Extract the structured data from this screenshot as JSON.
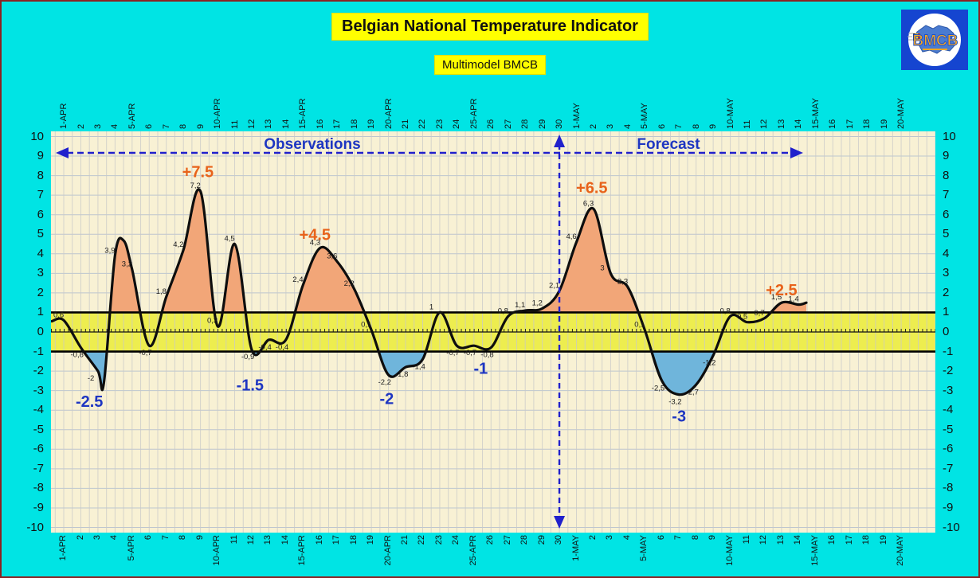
{
  "title": "Belgian National Temperature Indicator",
  "subtitle": "Multimodel BMCB",
  "logo": {
    "text": "BMCB"
  },
  "regions": {
    "observations": "Observations",
    "forecast": "Forecast"
  },
  "colors": {
    "background": "#00E4E4",
    "border": "#8B2121",
    "title_bg": "#FFFF00",
    "plot_bg": "#F8F1D4",
    "band": "#EDED4F",
    "grid_h": "#BDC6CF",
    "grid_v": "#C9C9C9",
    "curve": "#0E0E0E",
    "fill_above": "#F2A678",
    "fill_below": "#6FB5DB",
    "annotation_high": "#E8621A",
    "annotation_low": "#1E36C2",
    "arrow": "#2020CC",
    "logo_bg": "#1545D0"
  },
  "chart_data": {
    "type": "line",
    "title": "Belgian National Temperature Indicator",
    "subtitle": "Multimodel BMCB",
    "ylabel": "",
    "ylim": [
      -10,
      10
    ],
    "y_ticks": [
      10,
      9,
      8,
      7,
      6,
      5,
      4,
      3,
      2,
      1,
      0,
      -1,
      -2,
      -3,
      -4,
      -5,
      -6,
      -7,
      -8,
      -9,
      -10
    ],
    "x_ticks": [
      "1-APR",
      "2",
      "3",
      "4",
      "5-APR",
      "6",
      "7",
      "8",
      "9",
      "10-APR",
      "11",
      "12",
      "13",
      "14",
      "15-APR",
      "16",
      "17",
      "18",
      "19",
      "20-APR",
      "21",
      "22",
      "23",
      "24",
      "25-APR",
      "26",
      "27",
      "28",
      "29",
      "30",
      "1-MAY",
      "2",
      "3",
      "4",
      "5-MAY",
      "6",
      "7",
      "8",
      "9",
      "10-MAY",
      "11",
      "12",
      "13",
      "14",
      "15-MAY",
      "16",
      "17",
      "18",
      "19",
      "20-MAY"
    ],
    "band": {
      "from": -1,
      "to": 1
    },
    "split_day_index": 29,
    "series": [
      {
        "name": "temperature-indicator",
        "values": [
          0.6,
          -0.8,
          -2,
          3.9,
          3.2,
          -0.7,
          1.8,
          4.2,
          7.2,
          0.3,
          4.5,
          -0.9,
          -0.4,
          -0.4,
          2.4,
          4.3,
          3.6,
          2.2,
          0.1,
          -2.2,
          -1.8,
          -1.4,
          1,
          -0.7,
          -0.7,
          -0.8,
          0.8,
          1.1,
          1.2,
          2.1,
          4.6,
          6.3,
          3,
          2.3,
          0.1,
          -2.5,
          -3.2,
          -2.7,
          -1.2,
          0.8,
          0.5,
          0.7,
          1.5,
          1.4
        ],
        "point_labels": [
          "0,6",
          "-0,8",
          "-2",
          "3,9",
          "3,2",
          "-0,7",
          "1,8",
          "4,2",
          "7,2",
          "0,3",
          "4,5",
          "-0,9",
          "-0,4",
          "-0,4",
          "2,4",
          "4,3",
          "3,6",
          "2,2",
          "0,1",
          "-2,2",
          "-1,8",
          "-1,4",
          "1",
          "-0,7",
          "-0,7",
          "-0,8",
          "0,8",
          "1,1",
          "1,2",
          "2,1",
          "4,6",
          "6,3",
          "3",
          "2,3",
          "0,1",
          "-2,5",
          "-3,2",
          "-2,7",
          "-1,2",
          "0,8",
          "0,5",
          "0,7",
          "1,5",
          "1,4"
        ]
      }
    ],
    "annotations": [
      {
        "text": "+7.5",
        "day": 7.85,
        "value": 8.2,
        "type": "high"
      },
      {
        "text": "+4.5",
        "day": 14.7,
        "value": 5.0,
        "type": "high"
      },
      {
        "text": "+6.5",
        "day": 30.9,
        "value": 7.4,
        "type": "high"
      },
      {
        "text": "+2.5",
        "day": 42.0,
        "value": 2.15,
        "type": "high"
      },
      {
        "text": "-2.5",
        "day": 1.5,
        "value": -3.55,
        "type": "low"
      },
      {
        "text": "-1.5",
        "day": 10.9,
        "value": -2.7,
        "type": "low"
      },
      {
        "text": "-2",
        "day": 18.9,
        "value": -3.4,
        "type": "low"
      },
      {
        "text": "-1",
        "day": 24.4,
        "value": -1.85,
        "type": "low"
      },
      {
        "text": "-3",
        "day": 36.0,
        "value": -4.3,
        "type": "low"
      }
    ],
    "shape_anchors": [
      [
        -0.7,
        0.55
      ],
      [
        2.35,
        -2.6
      ],
      [
        3.5,
        4.68
      ],
      [
        43.45,
        1.5
      ]
    ]
  }
}
